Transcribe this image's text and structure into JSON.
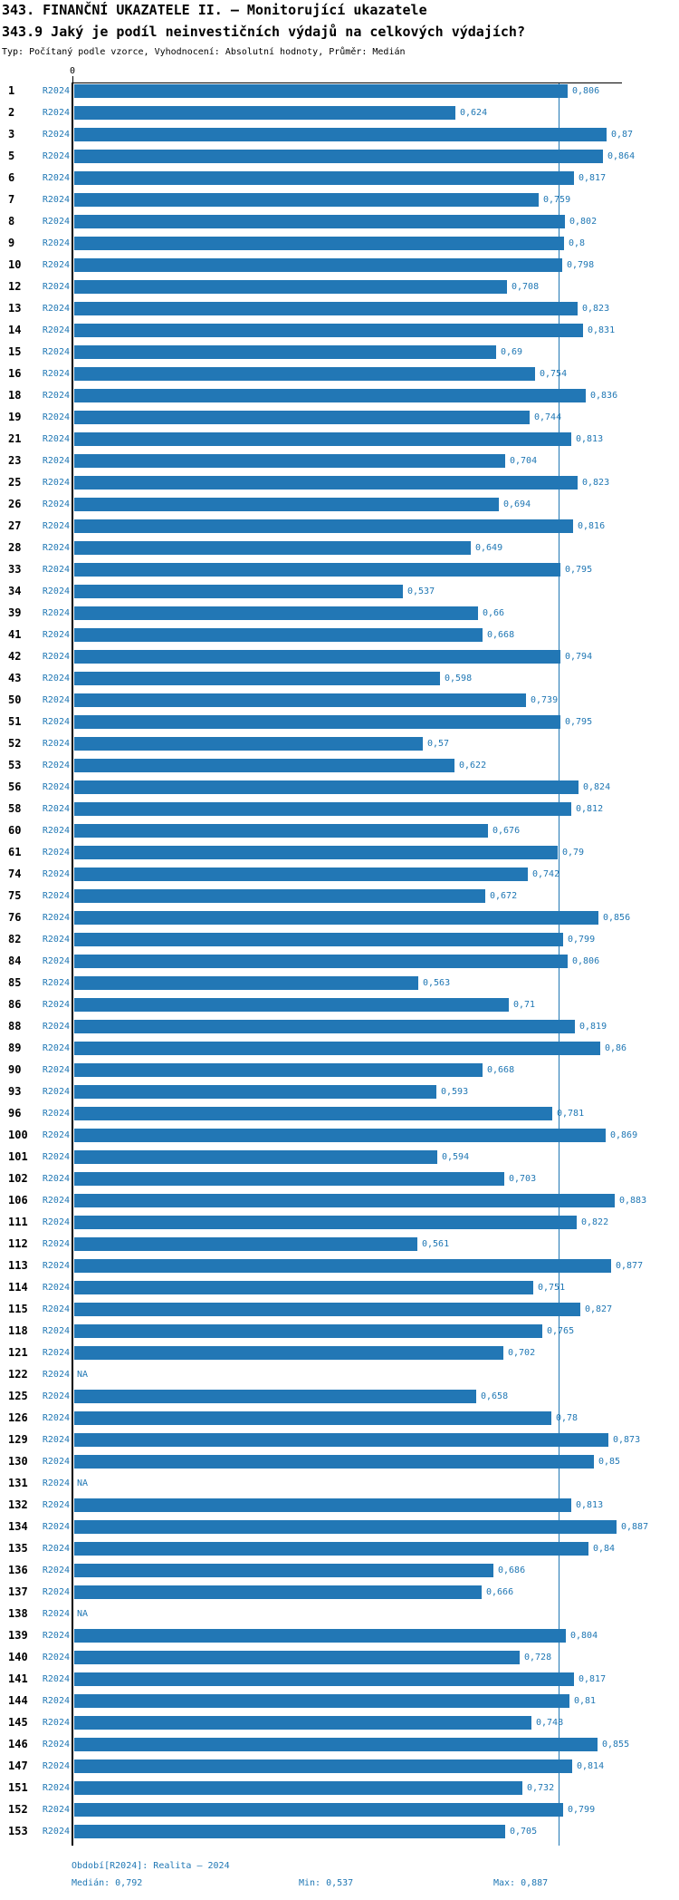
{
  "header": {
    "title": "343. FINANČNÍ UKAZATELE II. – Monitorující ukazatele",
    "subtitle": "343.9 Jaký je podíl neinvestičních výdajů na celkových výdajích?",
    "meta": "Typ: Počítaný podle vzorce, Vyhodnocení: Absolutní hodnoty, Průměr: Medián"
  },
  "chart_data": {
    "type": "bar",
    "orientation": "horizontal",
    "title": "343.9 Jaký je podíl neinvestičních výdajů na celkových výdajích?",
    "series_label": "R2024",
    "axis": {
      "zero_label": "0",
      "xmin": 0,
      "xmax": 0.894
    },
    "median_line_value": 0.792,
    "stats": {
      "median": 0.792,
      "min": 0.537,
      "max": 0.887
    },
    "na_text": "NA",
    "rows": [
      {
        "id": "1",
        "value": 0.806,
        "label": "0,806"
      },
      {
        "id": "2",
        "value": 0.624,
        "label": "0,624"
      },
      {
        "id": "3",
        "value": 0.87,
        "label": "0,87"
      },
      {
        "id": "5",
        "value": 0.864,
        "label": "0,864"
      },
      {
        "id": "6",
        "value": 0.817,
        "label": "0,817"
      },
      {
        "id": "7",
        "value": 0.759,
        "label": "0,759"
      },
      {
        "id": "8",
        "value": 0.802,
        "label": "0,802"
      },
      {
        "id": "9",
        "value": 0.8,
        "label": "0,8"
      },
      {
        "id": "10",
        "value": 0.798,
        "label": "0,798"
      },
      {
        "id": "12",
        "value": 0.708,
        "label": "0,708"
      },
      {
        "id": "13",
        "value": 0.823,
        "label": "0,823"
      },
      {
        "id": "14",
        "value": 0.831,
        "label": "0,831"
      },
      {
        "id": "15",
        "value": 0.69,
        "label": "0,69"
      },
      {
        "id": "16",
        "value": 0.754,
        "label": "0,754"
      },
      {
        "id": "18",
        "value": 0.836,
        "label": "0,836"
      },
      {
        "id": "19",
        "value": 0.744,
        "label": "0,744"
      },
      {
        "id": "21",
        "value": 0.813,
        "label": "0,813"
      },
      {
        "id": "23",
        "value": 0.704,
        "label": "0,704"
      },
      {
        "id": "25",
        "value": 0.823,
        "label": "0,823"
      },
      {
        "id": "26",
        "value": 0.694,
        "label": "0,694"
      },
      {
        "id": "27",
        "value": 0.816,
        "label": "0,816"
      },
      {
        "id": "28",
        "value": 0.649,
        "label": "0,649"
      },
      {
        "id": "33",
        "value": 0.795,
        "label": "0,795"
      },
      {
        "id": "34",
        "value": 0.537,
        "label": "0,537"
      },
      {
        "id": "39",
        "value": 0.66,
        "label": "0,66"
      },
      {
        "id": "41",
        "value": 0.668,
        "label": "0,668"
      },
      {
        "id": "42",
        "value": 0.794,
        "label": "0,794"
      },
      {
        "id": "43",
        "value": 0.598,
        "label": "0,598"
      },
      {
        "id": "50",
        "value": 0.739,
        "label": "0,739"
      },
      {
        "id": "51",
        "value": 0.795,
        "label": "0,795"
      },
      {
        "id": "52",
        "value": 0.57,
        "label": "0,57"
      },
      {
        "id": "53",
        "value": 0.622,
        "label": "0,622"
      },
      {
        "id": "56",
        "value": 0.824,
        "label": "0,824"
      },
      {
        "id": "58",
        "value": 0.812,
        "label": "0,812"
      },
      {
        "id": "60",
        "value": 0.676,
        "label": "0,676"
      },
      {
        "id": "61",
        "value": 0.79,
        "label": "0,79"
      },
      {
        "id": "74",
        "value": 0.742,
        "label": "0,742"
      },
      {
        "id": "75",
        "value": 0.672,
        "label": "0,672"
      },
      {
        "id": "76",
        "value": 0.856,
        "label": "0,856"
      },
      {
        "id": "82",
        "value": 0.799,
        "label": "0,799"
      },
      {
        "id": "84",
        "value": 0.806,
        "label": "0,806"
      },
      {
        "id": "85",
        "value": 0.563,
        "label": "0,563"
      },
      {
        "id": "86",
        "value": 0.71,
        "label": "0,71"
      },
      {
        "id": "88",
        "value": 0.819,
        "label": "0,819"
      },
      {
        "id": "89",
        "value": 0.86,
        "label": "0,86"
      },
      {
        "id": "90",
        "value": 0.668,
        "label": "0,668"
      },
      {
        "id": "93",
        "value": 0.593,
        "label": "0,593"
      },
      {
        "id": "96",
        "value": 0.781,
        "label": "0,781"
      },
      {
        "id": "100",
        "value": 0.869,
        "label": "0,869"
      },
      {
        "id": "101",
        "value": 0.594,
        "label": "0,594"
      },
      {
        "id": "102",
        "value": 0.703,
        "label": "0,703"
      },
      {
        "id": "106",
        "value": 0.883,
        "label": "0,883"
      },
      {
        "id": "111",
        "value": 0.822,
        "label": "0,822"
      },
      {
        "id": "112",
        "value": 0.561,
        "label": "0,561"
      },
      {
        "id": "113",
        "value": 0.877,
        "label": "0,877"
      },
      {
        "id": "114",
        "value": 0.751,
        "label": "0,751"
      },
      {
        "id": "115",
        "value": 0.827,
        "label": "0,827"
      },
      {
        "id": "118",
        "value": 0.765,
        "label": "0,765"
      },
      {
        "id": "121",
        "value": 0.702,
        "label": "0,702"
      },
      {
        "id": "122",
        "value": null,
        "label": "NA"
      },
      {
        "id": "125",
        "value": 0.658,
        "label": "0,658"
      },
      {
        "id": "126",
        "value": 0.78,
        "label": "0,78"
      },
      {
        "id": "129",
        "value": 0.873,
        "label": "0,873"
      },
      {
        "id": "130",
        "value": 0.85,
        "label": "0,85"
      },
      {
        "id": "131",
        "value": null,
        "label": "NA"
      },
      {
        "id": "132",
        "value": 0.813,
        "label": "0,813"
      },
      {
        "id": "134",
        "value": 0.887,
        "label": "0,887"
      },
      {
        "id": "135",
        "value": 0.84,
        "label": "0,84"
      },
      {
        "id": "136",
        "value": 0.686,
        "label": "0,686"
      },
      {
        "id": "137",
        "value": 0.666,
        "label": "0,666"
      },
      {
        "id": "138",
        "value": null,
        "label": "NA"
      },
      {
        "id": "139",
        "value": 0.804,
        "label": "0,804"
      },
      {
        "id": "140",
        "value": 0.728,
        "label": "0,728"
      },
      {
        "id": "141",
        "value": 0.817,
        "label": "0,817"
      },
      {
        "id": "144",
        "value": 0.81,
        "label": "0,81"
      },
      {
        "id": "145",
        "value": 0.748,
        "label": "0,748"
      },
      {
        "id": "146",
        "value": 0.855,
        "label": "0,855"
      },
      {
        "id": "147",
        "value": 0.814,
        "label": "0,814"
      },
      {
        "id": "151",
        "value": 0.732,
        "label": "0,732"
      },
      {
        "id": "152",
        "value": 0.799,
        "label": "0,799"
      },
      {
        "id": "153",
        "value": 0.705,
        "label": "0,705"
      }
    ]
  },
  "footer": {
    "period": "Období[R2024]: Realita – 2024",
    "median": "Medián: 0,792",
    "min": "Min: 0,537",
    "max": "Max: 0,887"
  },
  "colors": {
    "bar": "#2277B5",
    "text_blue": "#1F77B4",
    "axis": "#000000",
    "median_line": "#1F77B4"
  }
}
